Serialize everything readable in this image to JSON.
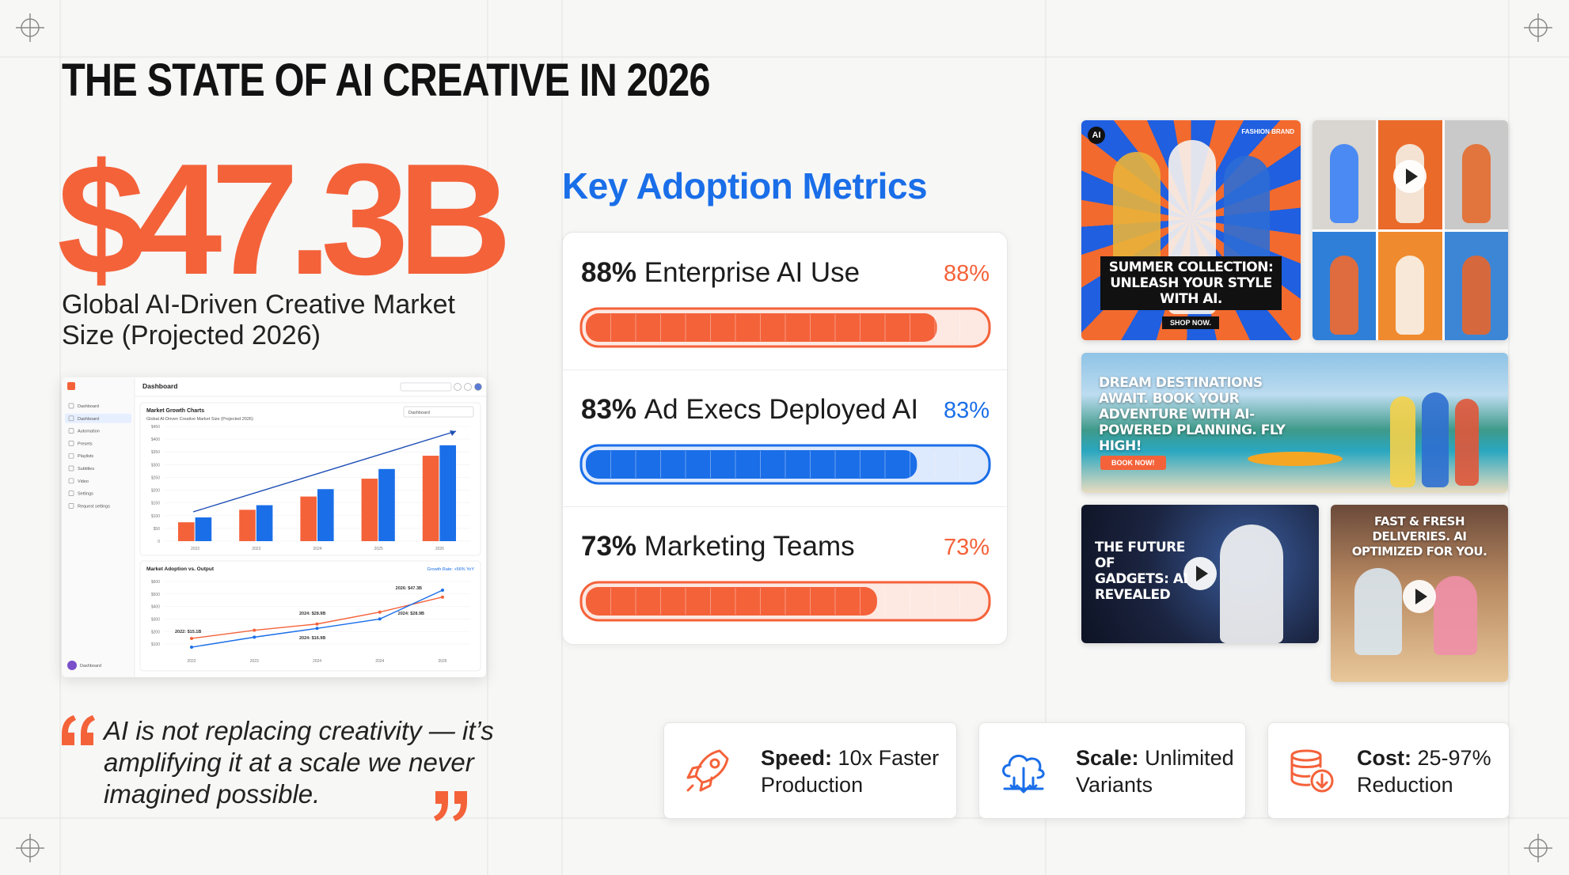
{
  "header": {
    "title": "THE STATE OF AI CREATIVE IN 2026"
  },
  "hero": {
    "stat": "$47.3B",
    "caption": "Global AI-Driven Creative Market Size (Projected 2026)"
  },
  "dashboard": {
    "title": "Dashboard",
    "sidebar": [
      "Dashboard",
      "Dashboard",
      "Automation",
      "Presets",
      "Playlists",
      "Subtitles",
      "Video",
      "Settings",
      "Request settings"
    ],
    "footer": "Dashboard",
    "bar_chart": {
      "type": "bar",
      "title": "Market Growth Charts",
      "subtitle": "Global AI-Driven Creative Market Size (Projected 2026)",
      "dropdown": "Dashboard",
      "categories": [
        "2022",
        "2023",
        "2024",
        "2025",
        "2026"
      ],
      "series": [
        {
          "color": "#f4623a",
          "values": [
            74,
            123,
            175,
            245,
            335
          ]
        },
        {
          "color": "#1a6ee8",
          "values": [
            93,
            141,
            204,
            283,
            376
          ]
        }
      ],
      "ylim": [
        0,
        450
      ],
      "yticks": [
        0,
        {
          "value": 50,
          "label": "$50"
        },
        {
          "value": 100,
          "label": "$100"
        },
        {
          "value": 150,
          "label": "$150"
        },
        {
          "value": 200,
          "label": "$200"
        },
        {
          "value": 250,
          "label": "$250"
        },
        {
          "value": 300,
          "label": "$300"
        },
        {
          "value": 350,
          "label": "$350"
        },
        {
          "value": 400,
          "label": "$400"
        },
        {
          "value": 450,
          "label": "$450"
        }
      ],
      "grid": true
    },
    "line_chart": {
      "type": "line",
      "title": "Market Adoption vs. Output",
      "note": "Growth Rate: +56% YoY",
      "categories": [
        "2022",
        "2023",
        "2024",
        "2024",
        "2026"
      ],
      "series": [
        {
          "color": "#f4623a",
          "values": [
            145,
            210,
            260,
            355,
            475
          ]
        },
        {
          "color": "#1a6ee8",
          "values": [
            75,
            155,
            225,
            300,
            530
          ]
        }
      ],
      "annotations": [
        "2026: $47.3B",
        "2024: $28.9B",
        "2024: $28.9B",
        "2022: $15.1B",
        "2024: $16.9B"
      ],
      "ylim": [
        50,
        650
      ],
      "yticks": [
        {
          "value": 100,
          "label": "$100"
        },
        {
          "value": 200,
          "label": "$200"
        },
        {
          "value": 300,
          "label": "$300"
        },
        {
          "value": 400,
          "label": "$400"
        },
        {
          "value": 500,
          "label": "$500"
        },
        {
          "value": 600,
          "label": "$600"
        }
      ],
      "grid": true
    }
  },
  "quote": {
    "text": "AI is not replacing creativity — it’s amplifying it at a scale we never imagined possible."
  },
  "metrics": {
    "title": "Key Adoption Metrics",
    "items": [
      {
        "label": "Enterprise AI Use",
        "value": 88,
        "value_label": "88%",
        "color": "#f4623a"
      },
      {
        "label": "Ad Execs Deployed AI",
        "value": 83,
        "value_label": "83%",
        "color": "#1a6ee8"
      },
      {
        "label": "Marketing Teams",
        "value": 73,
        "value_label": "73%",
        "color": "#f4623a"
      }
    ],
    "max": 100
  },
  "ads": {
    "fashion": {
      "badge": "AI",
      "brand": "FASHION BRAND",
      "headline": "SUMMER COLLECTION: UNLEASH YOUR STYLE WITH AI.",
      "cta": "SHOP NOW."
    },
    "travel": {
      "headline": "DREAM DESTINATIONS AWAIT. BOOK YOUR ADVENTURE WITH AI-POWERED PLANNING. FLY HIGH!",
      "cta": "BOOK NOW!"
    },
    "gadgets": {
      "headline": "THE FUTURE OF GADGETS: AI REVEALED"
    },
    "food": {
      "headline": "FAST & FRESH DELIVERIES. AI OPTIMIZED FOR YOU."
    }
  },
  "features": [
    {
      "label": "Speed:",
      "text": "10x Faster Production"
    },
    {
      "label": "Scale:",
      "text": "Unlimited Variants"
    },
    {
      "label": "Cost:",
      "text": "25-97% Reduction"
    }
  ]
}
